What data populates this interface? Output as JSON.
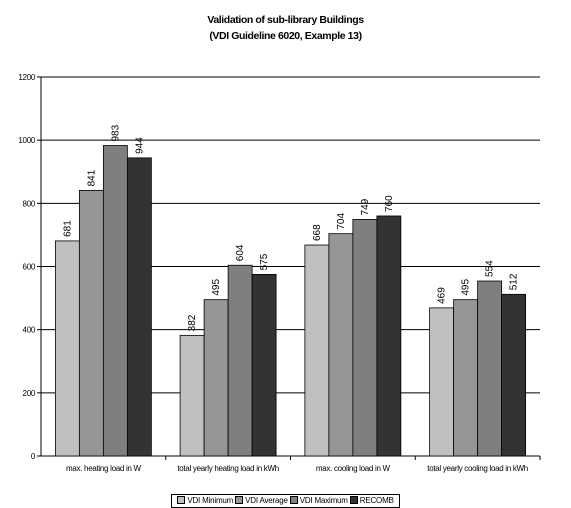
{
  "chart_data": {
    "type": "bar",
    "title": "Validation of sub-library Buildings",
    "subtitle": "(VDI Guideline 6020, Example 13)",
    "categories": [
      "max. heating load in W",
      "total yearly heating load in kWh",
      "max. cooling load in W",
      "total yearly cooling load in kWh"
    ],
    "series": [
      {
        "name": "VDI Minimum",
        "color": "#c0c0c0",
        "values": [
          681,
          382,
          668,
          469
        ]
      },
      {
        "name": "VDI Average",
        "color": "#969696",
        "values": [
          841,
          495,
          704,
          495
        ]
      },
      {
        "name": "VDI Maximum",
        "color": "#7f7f7f",
        "values": [
          983,
          604,
          749,
          554
        ]
      },
      {
        "name": "RECOMB",
        "color": "#333333",
        "values": [
          944,
          575,
          760,
          512
        ]
      }
    ],
    "ylim": [
      0,
      1200
    ],
    "yticks": [
      0,
      200,
      400,
      600,
      800,
      1000,
      1200
    ],
    "grid": true,
    "data_labels": true,
    "legend_position": "bottom"
  }
}
